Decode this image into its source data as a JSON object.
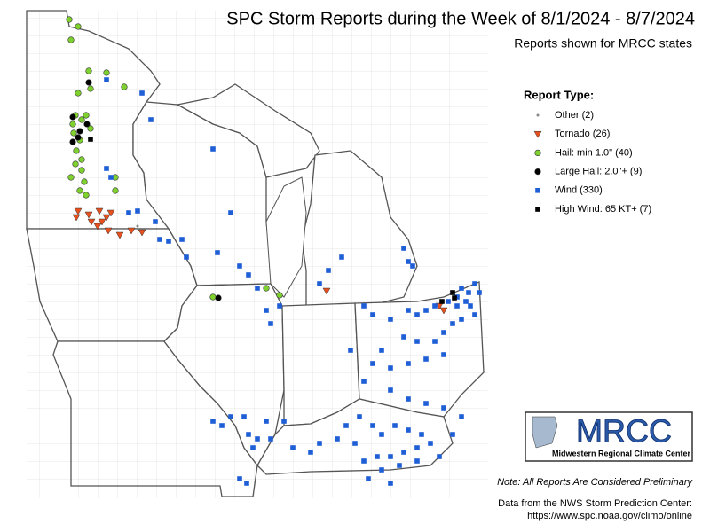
{
  "header": {
    "title": "SPC Storm Reports during the Week of 8/1/2024 - 8/7/2024",
    "subtitle": "Reports shown for MRCC states"
  },
  "legend": {
    "title": "Report Type:",
    "items": [
      {
        "label": "Other (2)",
        "color": "#888888",
        "shape": "dot-small"
      },
      {
        "label": "Tornado (26)",
        "color": "#e8501e",
        "shape": "triangle"
      },
      {
        "label": "Hail: min 1.0\" (40)",
        "color": "#7ed12f",
        "shape": "circle"
      },
      {
        "label": "Large Hail: 2.0\"+ (9)",
        "color": "#000000",
        "shape": "circle"
      },
      {
        "label": "Wind (330)",
        "color": "#1f5fd6",
        "shape": "square"
      },
      {
        "label": "High Wind: 65 KT+ (7)",
        "color": "#000000",
        "shape": "square"
      }
    ]
  },
  "logo": {
    "name": "MRCC",
    "full_name": "Midwestern Regional Climate Center"
  },
  "footer": {
    "note": "Note: All Reports Are Considered Preliminary",
    "source": "Data from the NWS Storm Prediction Center:",
    "url": "https://www.spc.noaa.gov/climo/online"
  }
}
